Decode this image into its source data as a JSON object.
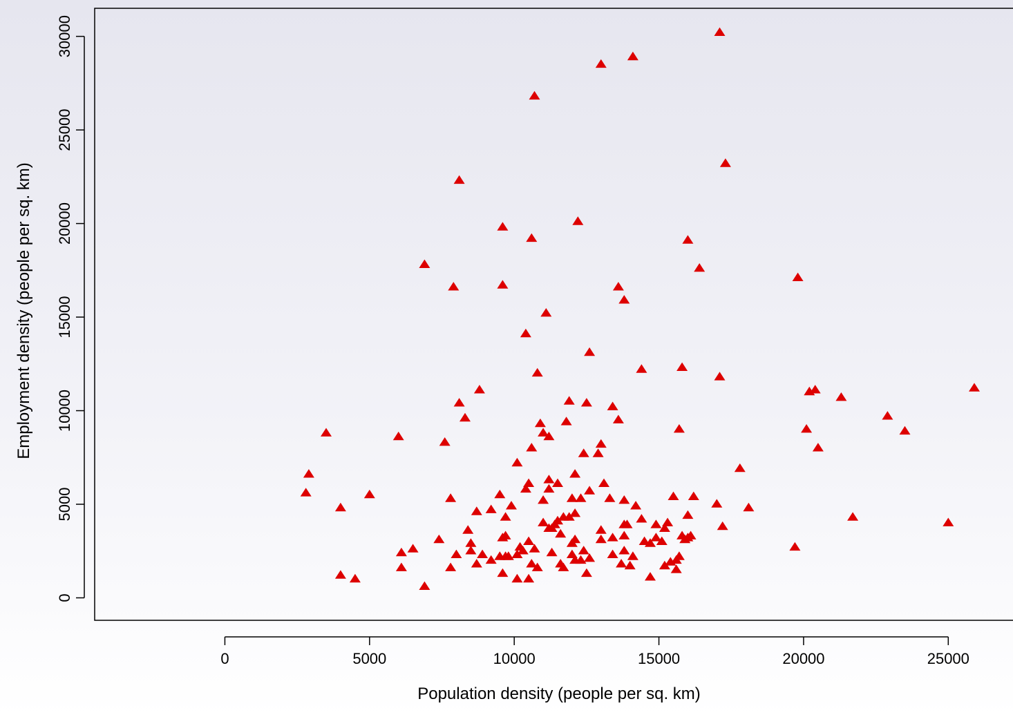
{
  "chart_data": {
    "type": "scatter",
    "title": "",
    "xlabel": "Population density (people per sq. km)",
    "ylabel": "Employment density (people per sq. km)",
    "xlim": [
      -4500,
      27500
    ],
    "ylim": [
      -1200,
      31500
    ],
    "xticks": [
      0,
      5000,
      10000,
      15000,
      20000,
      25000
    ],
    "yticks": [
      0,
      5000,
      10000,
      15000,
      20000,
      25000,
      30000
    ],
    "grid": false,
    "marker": "triangle",
    "marker_color": "#dd0000",
    "points": [
      [
        2800,
        5600
      ],
      [
        2900,
        6600
      ],
      [
        3500,
        8800
      ],
      [
        4000,
        4800
      ],
      [
        4000,
        1200
      ],
      [
        4500,
        1000
      ],
      [
        5000,
        5500
      ],
      [
        6000,
        8600
      ],
      [
        6100,
        2400
      ],
      [
        6100,
        1600
      ],
      [
        6500,
        2600
      ],
      [
        6900,
        17800
      ],
      [
        6900,
        600
      ],
      [
        7400,
        3100
      ],
      [
        7600,
        8300
      ],
      [
        7800,
        5300
      ],
      [
        7800,
        1600
      ],
      [
        7900,
        16600
      ],
      [
        8000,
        2300
      ],
      [
        8100,
        10400
      ],
      [
        8100,
        22300
      ],
      [
        8300,
        9600
      ],
      [
        8400,
        3600
      ],
      [
        8500,
        2900
      ],
      [
        8500,
        2500
      ],
      [
        8700,
        4600
      ],
      [
        8700,
        1800
      ],
      [
        8800,
        11100
      ],
      [
        8900,
        2300
      ],
      [
        9200,
        4700
      ],
      [
        9200,
        2000
      ],
      [
        9500,
        5500
      ],
      [
        9500,
        2200
      ],
      [
        9600,
        19800
      ],
      [
        9600,
        16700
      ],
      [
        9600,
        3200
      ],
      [
        9600,
        1300
      ],
      [
        9700,
        4300
      ],
      [
        9700,
        3300
      ],
      [
        9700,
        2200
      ],
      [
        9800,
        2200
      ],
      [
        9900,
        4900
      ],
      [
        10100,
        7200
      ],
      [
        10100,
        2300
      ],
      [
        10100,
        1000
      ],
      [
        10200,
        2700
      ],
      [
        10300,
        2500
      ],
      [
        10400,
        14100
      ],
      [
        10400,
        5800
      ],
      [
        10500,
        6100
      ],
      [
        10500,
        3000
      ],
      [
        10500,
        1000
      ],
      [
        10600,
        19200
      ],
      [
        10600,
        8000
      ],
      [
        10600,
        1800
      ],
      [
        10700,
        26800
      ],
      [
        10700,
        2600
      ],
      [
        10800,
        1600
      ],
      [
        10800,
        12000
      ],
      [
        10900,
        9300
      ],
      [
        11000,
        8800
      ],
      [
        11000,
        5200
      ],
      [
        11000,
        4000
      ],
      [
        11100,
        15200
      ],
      [
        11200,
        8600
      ],
      [
        11200,
        6300
      ],
      [
        11200,
        5800
      ],
      [
        11200,
        3700
      ],
      [
        11300,
        2400
      ],
      [
        11300,
        3700
      ],
      [
        11400,
        3900
      ],
      [
        11500,
        6100
      ],
      [
        11500,
        4100
      ],
      [
        11600,
        3400
      ],
      [
        11600,
        1800
      ],
      [
        11700,
        4300
      ],
      [
        11700,
        1600
      ],
      [
        11800,
        9400
      ],
      [
        11900,
        10500
      ],
      [
        11900,
        4300
      ],
      [
        12000,
        5300
      ],
      [
        12000,
        2900
      ],
      [
        12000,
        2300
      ],
      [
        12100,
        6600
      ],
      [
        12100,
        4500
      ],
      [
        12100,
        3100
      ],
      [
        12100,
        2000
      ],
      [
        12200,
        20100
      ],
      [
        12300,
        2000
      ],
      [
        12300,
        5300
      ],
      [
        12400,
        7700
      ],
      [
        12400,
        2500
      ],
      [
        12500,
        1300
      ],
      [
        12500,
        10400
      ],
      [
        12600,
        13100
      ],
      [
        12600,
        5700
      ],
      [
        12600,
        2100
      ],
      [
        12900,
        7700
      ],
      [
        13000,
        28500
      ],
      [
        13000,
        8200
      ],
      [
        13000,
        3600
      ],
      [
        13000,
        3100
      ],
      [
        13100,
        6100
      ],
      [
        13300,
        5300
      ],
      [
        13400,
        10200
      ],
      [
        13400,
        3200
      ],
      [
        13400,
        2300
      ],
      [
        13600,
        16600
      ],
      [
        13600,
        9500
      ],
      [
        13700,
        1800
      ],
      [
        13800,
        15900
      ],
      [
        13800,
        5200
      ],
      [
        13800,
        3900
      ],
      [
        13800,
        3300
      ],
      [
        13800,
        2500
      ],
      [
        13900,
        3900
      ],
      [
        14000,
        1700
      ],
      [
        14100,
        2200
      ],
      [
        14100,
        28900
      ],
      [
        14200,
        4900
      ],
      [
        14400,
        12200
      ],
      [
        14400,
        4200
      ],
      [
        14500,
        3000
      ],
      [
        14700,
        2900
      ],
      [
        14700,
        1100
      ],
      [
        14900,
        3900
      ],
      [
        14900,
        3200
      ],
      [
        15100,
        3000
      ],
      [
        15200,
        3700
      ],
      [
        15200,
        1700
      ],
      [
        15300,
        4000
      ],
      [
        15400,
        1900
      ],
      [
        15500,
        5400
      ],
      [
        15600,
        2000
      ],
      [
        15600,
        1500
      ],
      [
        15700,
        9000
      ],
      [
        15700,
        2200
      ],
      [
        15800,
        3300
      ],
      [
        15800,
        12300
      ],
      [
        15900,
        3100
      ],
      [
        16000,
        4400
      ],
      [
        16000,
        3200
      ],
      [
        16000,
        19100
      ],
      [
        16100,
        3300
      ],
      [
        16200,
        5400
      ],
      [
        16400,
        17600
      ],
      [
        17000,
        5000
      ],
      [
        17100,
        30200
      ],
      [
        17100,
        11800
      ],
      [
        17200,
        3800
      ],
      [
        17300,
        23200
      ],
      [
        17800,
        6900
      ],
      [
        18100,
        4800
      ],
      [
        19700,
        2700
      ],
      [
        19800,
        17100
      ],
      [
        20100,
        9000
      ],
      [
        20200,
        11000
      ],
      [
        20400,
        11100
      ],
      [
        20500,
        8000
      ],
      [
        21300,
        10700
      ],
      [
        21700,
        4300
      ],
      [
        22900,
        9700
      ],
      [
        23500,
        8900
      ],
      [
        25000,
        4000
      ],
      [
        25900,
        11200
      ]
    ]
  }
}
